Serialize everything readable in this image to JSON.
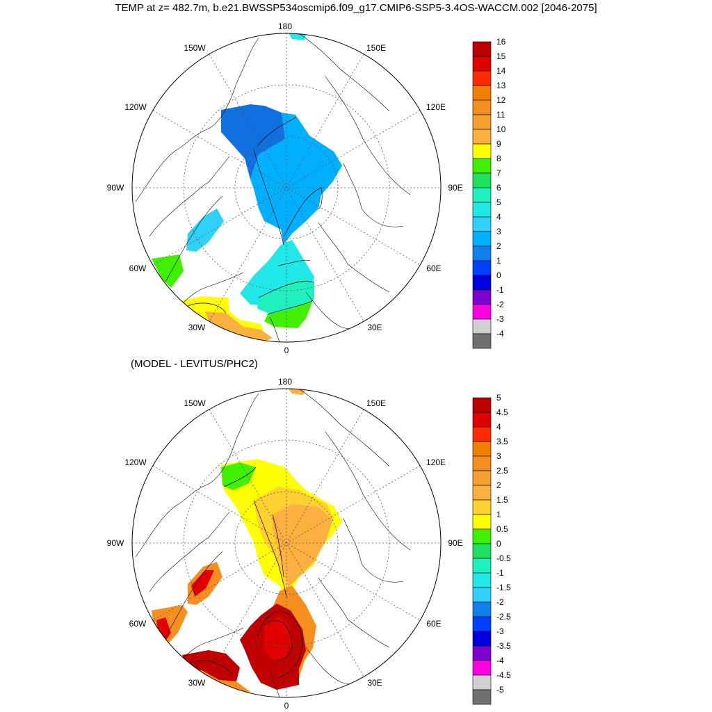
{
  "title": "TEMP at z= 482.7m, b.e21.BWSSP534oscmip6.f09_g17.CMIP6-SSP5-3.4OS-WACCM.002 [2046-2075]",
  "diff_title": "(MODEL - LEVITUS/PHC2)",
  "map_labels": {
    "lon_180": "180",
    "lon_150W": "150W",
    "lon_150E": "150E",
    "lon_120W": "120W",
    "lon_120E": "120E",
    "lon_90W": "90W",
    "lon_90E": "90E",
    "lon_60W": "60W",
    "lon_60E": "60E",
    "lon_30W": "30W",
    "lon_30E": "30E",
    "lon_0": "0"
  },
  "colorbar_top": {
    "labels": [
      "16",
      "15",
      "14",
      "13",
      "12",
      "11",
      "10",
      "9",
      "8",
      "7",
      "6",
      "5",
      "4",
      "3",
      "2",
      "1",
      "0",
      "-1",
      "-2",
      "-3",
      "-4"
    ],
    "colors": [
      "#c00000",
      "#e00000",
      "#ff2a00",
      "#f08000",
      "#f59020",
      "#f7a030",
      "#fbb040",
      "#ffff00",
      "#40f000",
      "#20e060",
      "#20f0c0",
      "#20e8e8",
      "#30d0f8",
      "#00b0ff",
      "#1080f0",
      "#0040ff",
      "#0000e0",
      "#8000d0",
      "#ff00e0",
      "#d0d0d0",
      "#707070"
    ]
  },
  "colorbar_bottom": {
    "labels": [
      "5",
      "4.5",
      "4",
      "3.5",
      "3",
      "2.5",
      "2",
      "1.5",
      "1",
      "0.5",
      "0",
      "-0.5",
      "-1",
      "-1.5",
      "-2",
      "-2.5",
      "-3",
      "-3.5",
      "-4",
      "-4.5",
      "-5"
    ],
    "colors": [
      "#c00000",
      "#e00000",
      "#ff2a00",
      "#f08000",
      "#f59020",
      "#f7a030",
      "#fbb040",
      "#ffd030",
      "#ffff00",
      "#40f000",
      "#20e060",
      "#20f0c0",
      "#20e8e8",
      "#30d0f8",
      "#1080f0",
      "#0040ff",
      "#0000e0",
      "#8000d0",
      "#ff00e0",
      "#d0d0d0",
      "#707070"
    ]
  },
  "palette": {
    "deep_blue": "#1070e0",
    "mid_blue": "#00b0ff",
    "cyan": "#20e8e8",
    "light_cyan": "#30d0f8",
    "teal": "#20f0c0",
    "green": "#40f000",
    "yellow": "#ffff00",
    "yellow_orange": "#ffd030",
    "light_orange": "#fbb040",
    "orange": "#f59020",
    "dark_orange": "#f08000",
    "red": "#e00000",
    "dark_red": "#c00000"
  }
}
